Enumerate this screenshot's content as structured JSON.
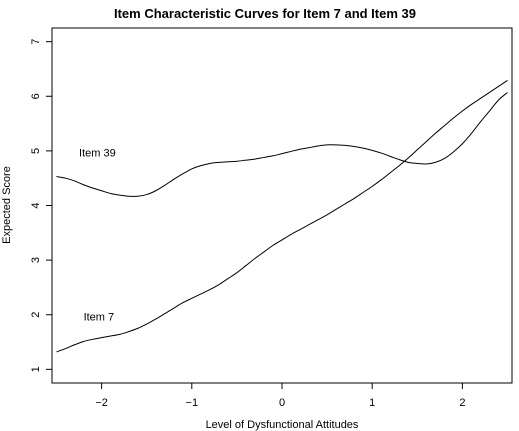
{
  "chart_data": {
    "type": "line",
    "title": "Item Characteristic Curves for Item 7 and Item 39",
    "xlabel": "Level of Dysfunctional Attitudes",
    "ylabel": "Expected Score",
    "xlim": [
      -2.55,
      2.55
    ],
    "ylim": [
      0.75,
      7.25
    ],
    "xticks": [
      -2,
      -1,
      0,
      1,
      2
    ],
    "xtick_labels": [
      "−2",
      "−1",
      "0",
      "1",
      "2"
    ],
    "yticks": [
      1,
      2,
      3,
      4,
      5,
      6,
      7
    ],
    "ytick_labels": [
      "1",
      "2",
      "3",
      "4",
      "5",
      "6",
      "7"
    ],
    "grid": false,
    "legend": "none",
    "series": [
      {
        "name": "Item 39",
        "label_position": [
          -2.25,
          4.95
        ],
        "color": "#000000",
        "x": [
          -2.5,
          -2.4,
          -2.3,
          -2.2,
          -2.1,
          -2.0,
          -1.9,
          -1.8,
          -1.7,
          -1.6,
          -1.5,
          -1.4,
          -1.3,
          -1.2,
          -1.1,
          -1.0,
          -0.9,
          -0.8,
          -0.7,
          -0.6,
          -0.5,
          -0.4,
          -0.3,
          -0.2,
          -0.1,
          0.0,
          0.1,
          0.2,
          0.3,
          0.4,
          0.5,
          0.6,
          0.7,
          0.8,
          0.9,
          1.0,
          1.1,
          1.2,
          1.3,
          1.4,
          1.5,
          1.6,
          1.7,
          1.8,
          1.9,
          2.0,
          2.1,
          2.2,
          2.3,
          2.4,
          2.5
        ],
        "values": [
          4.53,
          4.5,
          4.45,
          4.38,
          4.32,
          4.27,
          4.22,
          4.19,
          4.17,
          4.17,
          4.2,
          4.27,
          4.37,
          4.48,
          4.58,
          4.67,
          4.73,
          4.77,
          4.79,
          4.8,
          4.81,
          4.83,
          4.85,
          4.88,
          4.91,
          4.95,
          4.99,
          5.03,
          5.06,
          5.09,
          5.11,
          5.11,
          5.1,
          5.08,
          5.05,
          5.01,
          4.96,
          4.9,
          4.84,
          4.79,
          4.77,
          4.76,
          4.79,
          4.86,
          4.98,
          5.13,
          5.32,
          5.53,
          5.73,
          5.93,
          6.07
        ]
      },
      {
        "name": "Item 7",
        "label_position": [
          -2.2,
          1.95
        ],
        "color": "#000000",
        "x": [
          -2.5,
          -2.4,
          -2.3,
          -2.2,
          -2.1,
          -2.0,
          -1.9,
          -1.8,
          -1.7,
          -1.6,
          -1.5,
          -1.4,
          -1.3,
          -1.2,
          -1.1,
          -1.0,
          -0.9,
          -0.8,
          -0.7,
          -0.6,
          -0.5,
          -0.4,
          -0.3,
          -0.2,
          -0.1,
          0.0,
          0.1,
          0.2,
          0.3,
          0.4,
          0.5,
          0.6,
          0.7,
          0.8,
          0.9,
          1.0,
          1.1,
          1.2,
          1.3,
          1.4,
          1.5,
          1.6,
          1.7,
          1.8,
          1.9,
          2.0,
          2.1,
          2.2,
          2.3,
          2.4,
          2.5
        ],
        "values": [
          1.32,
          1.38,
          1.45,
          1.51,
          1.55,
          1.58,
          1.61,
          1.64,
          1.69,
          1.75,
          1.83,
          1.92,
          2.02,
          2.12,
          2.22,
          2.3,
          2.38,
          2.46,
          2.55,
          2.66,
          2.77,
          2.9,
          3.03,
          3.15,
          3.27,
          3.37,
          3.47,
          3.56,
          3.65,
          3.74,
          3.83,
          3.93,
          4.03,
          4.13,
          4.24,
          4.35,
          4.47,
          4.6,
          4.73,
          4.87,
          5.02,
          5.17,
          5.32,
          5.46,
          5.6,
          5.73,
          5.85,
          5.96,
          6.07,
          6.18,
          6.29
        ]
      }
    ]
  }
}
